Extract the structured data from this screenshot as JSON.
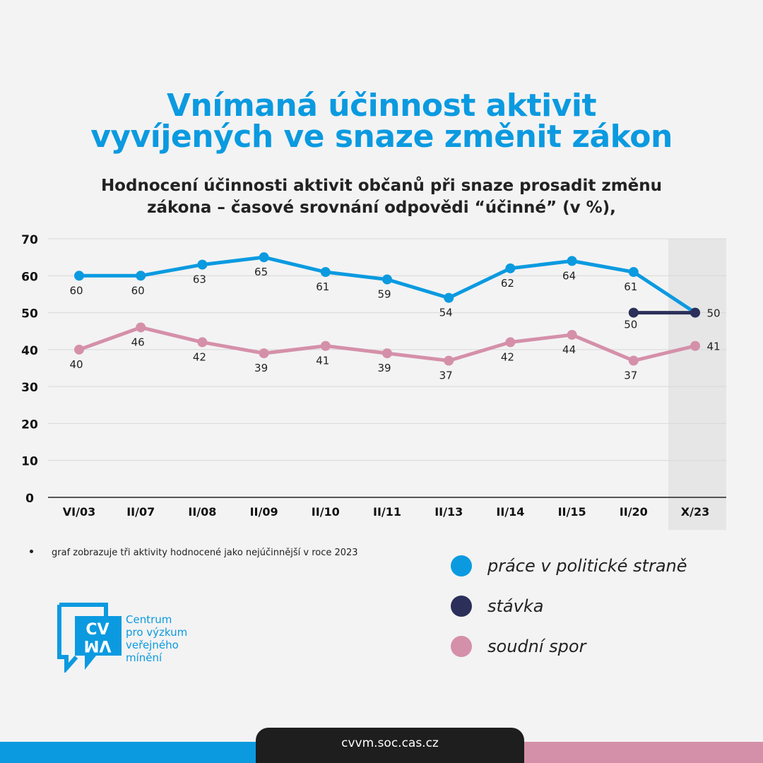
{
  "header": {
    "title_line1": "Vnímaná účinnost aktivit",
    "title_line2": "vyvíjených ve snaze změnit zákon",
    "subtitle_line1": "Hodnocení účinnosti aktivit občanů při snaze prosadit změnu",
    "subtitle_line2": "zákona – časové srovnání odpovědi “účinné” (v %),"
  },
  "chart_data": {
    "type": "line",
    "categories": [
      "VI/03",
      "II/07",
      "II/08",
      "II/09",
      "II/10",
      "II/11",
      "II/13",
      "II/14",
      "II/15",
      "II/20",
      "X/23"
    ],
    "ylim": [
      0,
      70
    ],
    "yticks": [
      0,
      10,
      20,
      30,
      40,
      50,
      60,
      70
    ],
    "grid": true,
    "highlight_category": "X/23",
    "series": [
      {
        "name": "práce v politické straně",
        "color": "#0b9ae0",
        "values": [
          60,
          60,
          63,
          65,
          61,
          59,
          54,
          62,
          64,
          61,
          50
        ]
      },
      {
        "name": "stávka",
        "color": "#2b2f5a",
        "values": [
          null,
          null,
          null,
          null,
          null,
          null,
          null,
          null,
          null,
          50,
          50
        ]
      },
      {
        "name": "soudní spor",
        "color": "#d590a9",
        "values": [
          40,
          46,
          42,
          39,
          41,
          39,
          37,
          42,
          44,
          37,
          41
        ]
      }
    ]
  },
  "note": "graf zobrazuje tři aktivity hodnocené jako nejúčinnější v roce 2023",
  "logo": {
    "mark_line1": "CV",
    "mark_line2": "VM",
    "line1": "Centrum",
    "line2": "pro výzkum",
    "line3": "veřejného",
    "line4": "mínění"
  },
  "footer": {
    "url": "cvvm.soc.cas.cz"
  }
}
